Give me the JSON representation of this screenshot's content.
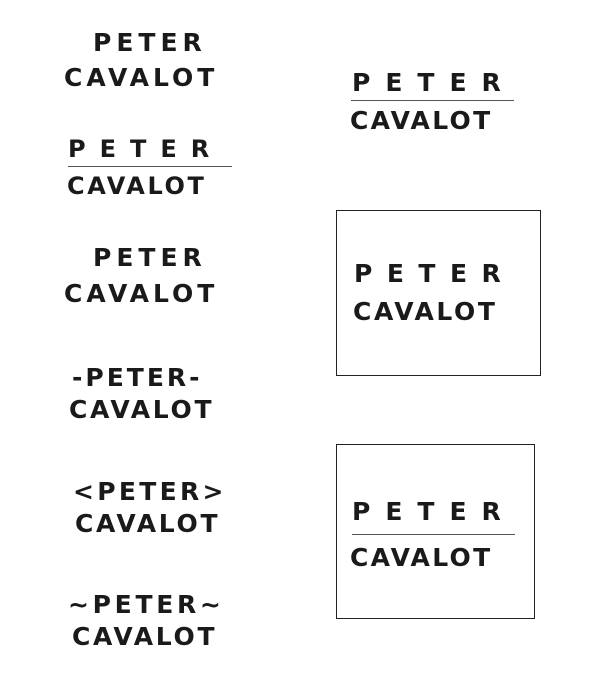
{
  "logos": [
    {
      "top": "PETER",
      "bottom": "CAVALOT"
    },
    {
      "top": "PETER",
      "bottom": "CAVALOT"
    },
    {
      "top": "PETER",
      "bottom": "CAVALOT"
    },
    {
      "top": "-PETER-",
      "bottom": "CAVALOT"
    },
    {
      "top": "<PETER>",
      "bottom": "CAVALOT"
    },
    {
      "top": "~PETER~",
      "bottom": "CAVALOT"
    },
    {
      "top": "PETER",
      "bottom": "CAVALOT"
    },
    {
      "top": "PETER",
      "bottom": "CAVALOT"
    },
    {
      "top": "PETER",
      "bottom": "CAVALOT"
    }
  ],
  "colors": {
    "text": "#1a1a1a",
    "rule": "#555555",
    "frame": "#222222",
    "background": "#ffffff"
  }
}
